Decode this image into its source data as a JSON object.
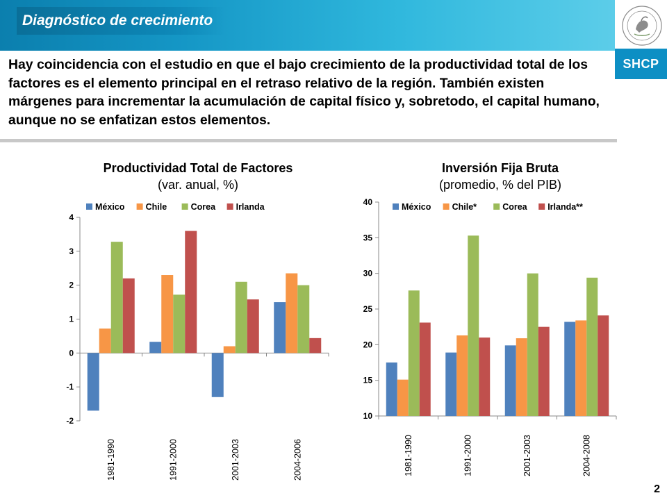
{
  "header": {
    "title": "Diagnóstico de crecimiento",
    "logo_text": "SHCP",
    "seal_text": "ESTADOS UNIDOS MEXICANOS"
  },
  "intro_text": "Hay coincidencia con el estudio en que el bajo crecimiento de la productividad total de los factores es el elemento principal en el retraso relativo de la región. También existen márgenes para incrementar la acumulación de capital físico y, sobretodo, el capital humano, aunque no se enfatizan estos elementos.",
  "page_number": "2",
  "colors": {
    "mexico": "#4f81bd",
    "chile": "#f79646",
    "corea": "#9bbb59",
    "irlanda": "#c0504d",
    "banner": "#1597c6"
  },
  "chart_data": [
    {
      "type": "bar",
      "title": "Productividad Total de Factores",
      "subtitle": "(var. anual, %)",
      "categories": [
        "1981-1990",
        "1991-2000",
        "2001-2003",
        "2004-2006"
      ],
      "series": [
        {
          "name": "México",
          "values": [
            -1.7,
            0.33,
            -1.3,
            1.5
          ]
        },
        {
          "name": "Chile",
          "values": [
            0.72,
            2.3,
            0.2,
            2.35
          ]
        },
        {
          "name": "Corea",
          "values": [
            3.28,
            1.72,
            2.1,
            2.0
          ]
        },
        {
          "name": "Irlanda",
          "values": [
            2.2,
            3.6,
            1.58,
            0.44
          ]
        }
      ],
      "ylim": [
        -2,
        4
      ],
      "yticks": [
        4,
        3,
        2,
        1,
        0,
        -1,
        -2
      ],
      "legend": "top",
      "grid": false
    },
    {
      "type": "bar",
      "title": "Inversión Fija Bruta",
      "subtitle": "(promedio, % del PIB)",
      "categories": [
        "1981-1990",
        "1991-2000",
        "2001-2003",
        "2004-2008"
      ],
      "series": [
        {
          "name": "México",
          "values": [
            17.5,
            18.9,
            19.9,
            23.2
          ]
        },
        {
          "name": "Chile*",
          "values": [
            15.1,
            21.3,
            20.9,
            23.4
          ]
        },
        {
          "name": "Corea",
          "values": [
            27.6,
            35.3,
            30.0,
            29.4
          ]
        },
        {
          "name": "Irlanda**",
          "values": [
            23.1,
            21.0,
            22.5,
            24.1
          ]
        }
      ],
      "ylim": [
        10,
        40
      ],
      "yticks": [
        40,
        35,
        30,
        25,
        20,
        15,
        10
      ],
      "legend": "top",
      "grid": false
    }
  ]
}
